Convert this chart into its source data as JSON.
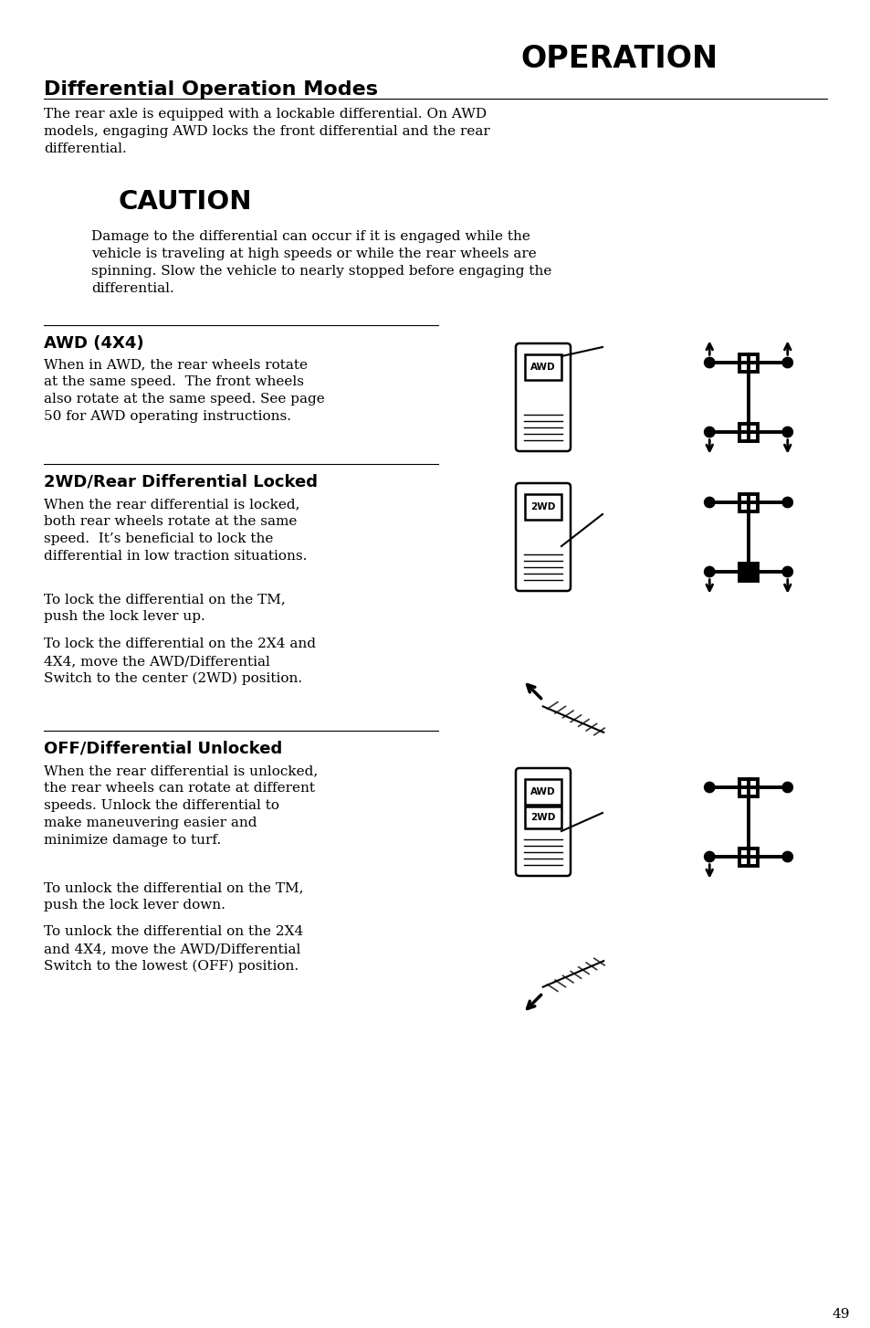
{
  "page_bg": "#ffffff",
  "header_title": "OPERATION",
  "section_title": "Differential Operation Modes",
  "intro_text": "The rear axle is equipped with a lockable differential. On AWD\nmodels, engaging AWD locks the front differential and the rear\ndifferential.",
  "caution_title": "CAUTION",
  "caution_text": "Damage to the differential can occur if it is engaged while the\nvehicle is traveling at high speeds or while the rear wheels are\nspinning. Slow the vehicle to nearly stopped before engaging the\ndifferential.",
  "awd_title": "AWD (4X4)",
  "awd_text": "When in AWD, the rear wheels rotate\nat the same speed.  The front wheels\nalso rotate at the same speed. See page\n50 for AWD operating instructions.",
  "twd_title": "2WD/Rear Differential Locked",
  "twd_text1": "When the rear differential is locked,\nboth rear wheels rotate at the same\nspeed.  It’s beneficial to lock the\ndifferential in low traction situations.",
  "twd_text2": "To lock the differential on the TM,\npush the lock lever up.",
  "twd_text3": "To lock the differential on the 2X4 and\n4X4, move the AWD/Differential\nSwitch to the center (2WD) position.",
  "off_title": "OFF/Differential Unlocked",
  "off_text1": "When the rear differential is unlocked,\nthe rear wheels can rotate at different\nspeeds. Unlock the differential to\nmake maneuvering easier and\nminimize damage to turf.",
  "off_text2": "To unlock the differential on the TM,\npush the lock lever down.",
  "off_text3": "To unlock the differential on the 2X4\nand 4X4, move the AWD/Differential\nSwitch to the lowest (OFF) position.",
  "page_number": "49"
}
